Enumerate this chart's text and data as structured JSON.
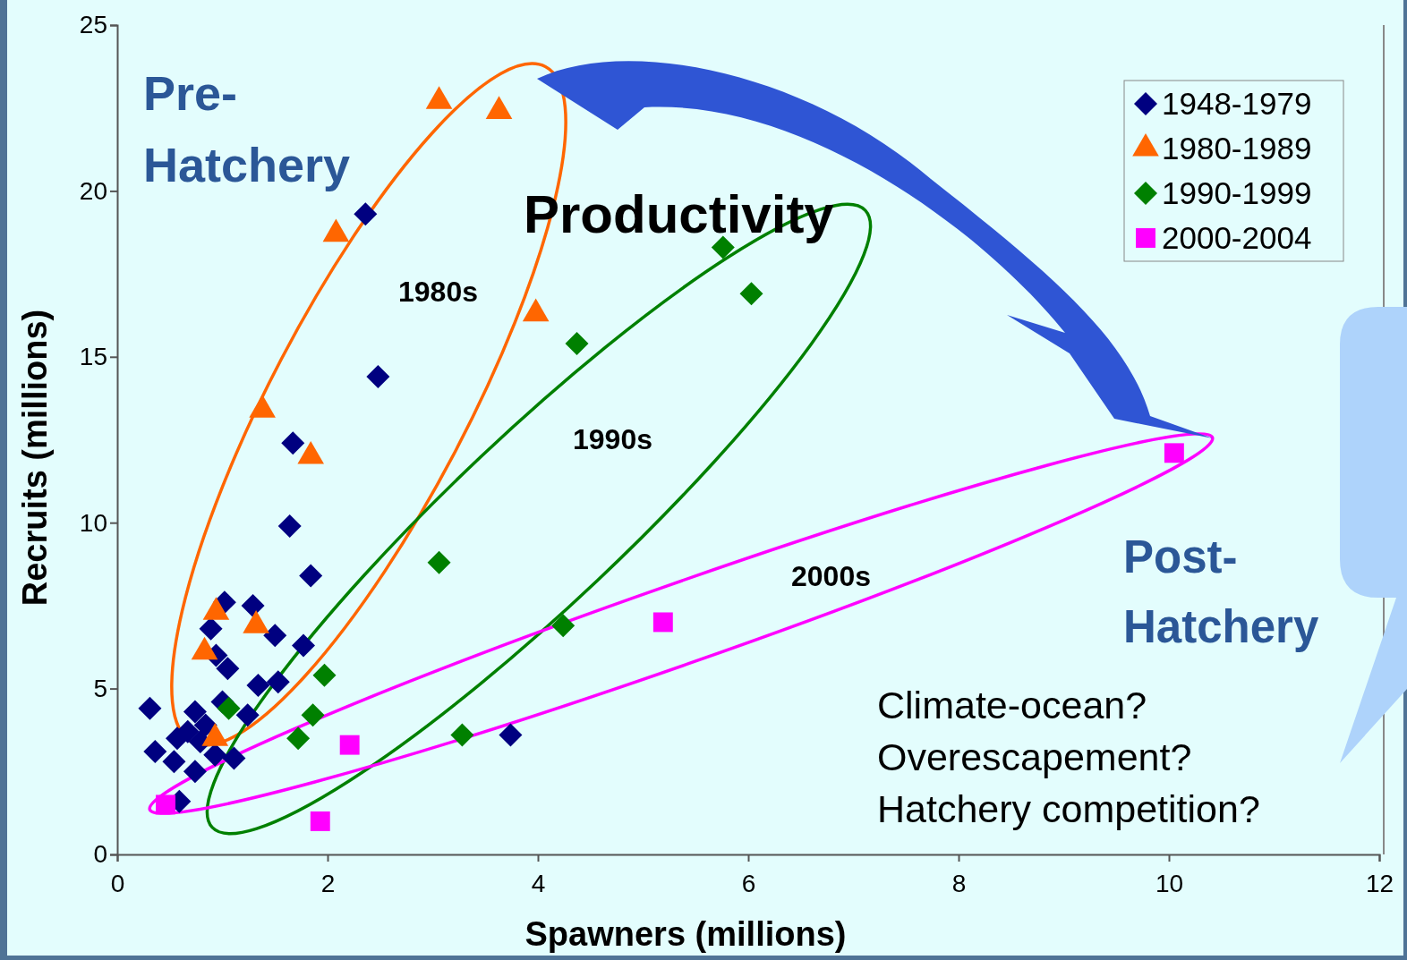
{
  "chart_data": {
    "type": "scatter",
    "xlabel": "Spawners (millions)",
    "ylabel": "Recruits (millions)",
    "xlim": [
      0,
      12
    ],
    "ylim": [
      0,
      25
    ],
    "xticks": [
      0,
      2,
      4,
      6,
      8,
      10,
      12
    ],
    "yticks": [
      0,
      5,
      10,
      15,
      20,
      25
    ],
    "legend": "top right",
    "series": [
      {
        "name": "1948-1979",
        "color": "#000080",
        "marker": "diamond",
        "x": [
          2.36,
          2.48,
          1.67,
          1.64,
          1.84,
          1.02,
          1.29,
          0.89,
          1.5,
          1.77,
          0.94,
          1.05,
          1.53,
          1.34,
          1.0,
          0.31,
          0.74,
          1.24,
          0.84,
          0.67,
          0.57,
          0.36,
          0.54,
          0.74,
          1.11,
          0.93,
          0.59,
          0.79,
          3.74
        ],
        "values": [
          19.3,
          14.4,
          12.4,
          9.9,
          8.4,
          7.6,
          7.5,
          6.8,
          6.6,
          6.3,
          6.0,
          5.6,
          5.2,
          5.1,
          4.6,
          4.4,
          4.3,
          4.2,
          3.9,
          3.7,
          3.5,
          3.1,
          2.8,
          2.5,
          2.9,
          3.0,
          1.6,
          3.4,
          3.6
        ]
      },
      {
        "name": "1980-1989",
        "color": "#ff6600",
        "marker": "triangle",
        "x": [
          3.06,
          3.63,
          2.08,
          3.98,
          1.38,
          1.84,
          1.32,
          0.94,
          0.83,
          0.93
        ],
        "values": [
          22.7,
          22.4,
          18.7,
          16.3,
          13.4,
          12.0,
          6.9,
          7.3,
          6.1,
          3.5
        ]
      },
      {
        "name": "1990-1999",
        "color": "#008000",
        "marker": "diamond",
        "x": [
          5.76,
          6.03,
          4.37,
          3.06,
          4.24,
          1.97,
          1.06,
          1.86,
          1.72,
          3.28
        ],
        "values": [
          18.3,
          16.9,
          15.4,
          8.8,
          6.9,
          5.4,
          4.4,
          4.2,
          3.5,
          3.6
        ]
      },
      {
        "name": "2000-2004",
        "color": "#ff00ff",
        "marker": "square",
        "x": [
          10.05,
          5.19,
          2.21,
          0.46,
          1.93
        ],
        "values": [
          12.1,
          7.0,
          3.3,
          1.5,
          1.0
        ]
      }
    ],
    "annotations": [
      "Pre-\nHatchery",
      "Productivity",
      "1980s",
      "1990s",
      "2000s",
      "Post-\nHatchery",
      "Climate-ocean?\nOverescapement?\nHatchery competition?"
    ]
  }
}
